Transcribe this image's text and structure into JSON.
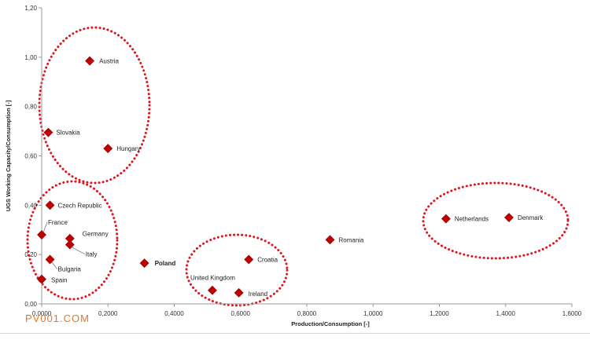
{
  "watermark": "PV001.COM",
  "chart_data": {
    "type": "scatter",
    "xlabel": "Production/Consumption  [-]",
    "ylabel": "UGS Working Capacity/Consumption  [-]",
    "xlim": [
      0,
      1.6
    ],
    "ylim": [
      0,
      1.2
    ],
    "x_ticks": [
      {
        "v": 0.0,
        "t": "0,0000"
      },
      {
        "v": 0.2,
        "t": "0,2000"
      },
      {
        "v": 0.4,
        "t": "0,4000"
      },
      {
        "v": 0.6,
        "t": "0,6000"
      },
      {
        "v": 0.8,
        "t": "0,8000"
      },
      {
        "v": 1.0,
        "t": "1,0000"
      },
      {
        "v": 1.2,
        "t": "1,2000"
      },
      {
        "v": 1.4,
        "t": "1,4000"
      },
      {
        "v": 1.6,
        "t": "1,6000"
      }
    ],
    "y_ticks": [
      {
        "v": 0.0,
        "t": "0,00"
      },
      {
        "v": 0.2,
        "t": "0,20"
      },
      {
        "v": 0.4,
        "t": "0,40"
      },
      {
        "v": 0.6,
        "t": "0,60"
      },
      {
        "v": 0.8,
        "t": "0,80"
      },
      {
        "v": 1.0,
        "t": "1,00"
      },
      {
        "v": 1.2,
        "t": "1,20"
      }
    ],
    "grid": false,
    "marker_color": "#c00000",
    "points": [
      {
        "name": "Austria",
        "x": 0.145,
        "y": 0.985
      },
      {
        "name": "Slovakia",
        "x": 0.02,
        "y": 0.695
      },
      {
        "name": "Hungary",
        "x": 0.2,
        "y": 0.63
      },
      {
        "name": "Czech Republic",
        "x": 0.025,
        "y": 0.4
      },
      {
        "name": "France",
        "x": 0.0,
        "y": 0.28
      },
      {
        "name": "Germany",
        "x": 0.085,
        "y": 0.265
      },
      {
        "name": "Italy",
        "x": 0.085,
        "y": 0.24
      },
      {
        "name": "Bulgaria",
        "x": 0.025,
        "y": 0.18
      },
      {
        "name": "Spain",
        "x": 0.0,
        "y": 0.1
      },
      {
        "name": "Poland",
        "x": 0.31,
        "y": 0.165,
        "bold": true
      },
      {
        "name": "United Kingdom",
        "x": 0.515,
        "y": 0.055
      },
      {
        "name": "Ireland",
        "x": 0.595,
        "y": 0.045
      },
      {
        "name": "Croatia",
        "x": 0.625,
        "y": 0.18
      },
      {
        "name": "Romania",
        "x": 0.87,
        "y": 0.26
      },
      {
        "name": "Netherlands",
        "x": 1.22,
        "y": 0.345
      },
      {
        "name": "Denmark",
        "x": 1.41,
        "y": 0.35
      }
    ],
    "group_outline_color": "#e0141e"
  }
}
